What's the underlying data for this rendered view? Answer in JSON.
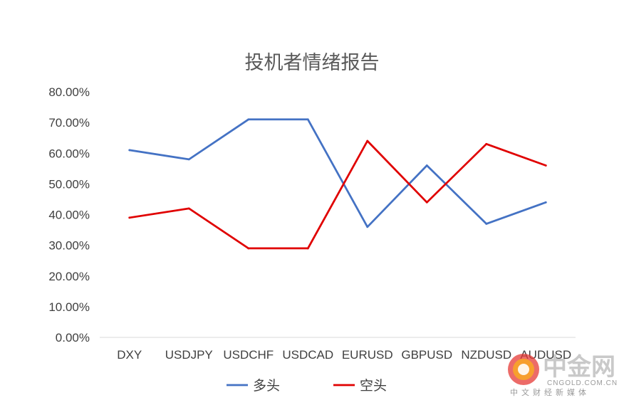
{
  "chart_data": {
    "type": "line",
    "title": "投机者情绪报告",
    "xlabel": "",
    "ylabel": "",
    "categories": [
      "DXY",
      "USDJPY",
      "USDCHF",
      "USDCAD",
      "EURUSD",
      "GBPUSD",
      "NZDUSD",
      "AUDUSD"
    ],
    "ylim": [
      0,
      0.8
    ],
    "yticks": [
      "0.00%",
      "10.00%",
      "20.00%",
      "30.00%",
      "40.00%",
      "50.00%",
      "60.00%",
      "70.00%",
      "80.00%"
    ],
    "grid": false,
    "legend": "bottom",
    "series": [
      {
        "name": "多头",
        "color": "#4472C4",
        "values": [
          0.61,
          0.58,
          0.71,
          0.71,
          0.36,
          0.56,
          0.37,
          0.44
        ]
      },
      {
        "name": "空头",
        "color": "#E00000",
        "values": [
          0.39,
          0.42,
          0.29,
          0.29,
          0.64,
          0.44,
          0.63,
          0.56
        ]
      }
    ]
  },
  "watermark": {
    "brand": "中金网",
    "site": "CNGOLD.COM.CN",
    "tagline": "中文财经新媒体",
    "logo_color": "#E53935"
  }
}
